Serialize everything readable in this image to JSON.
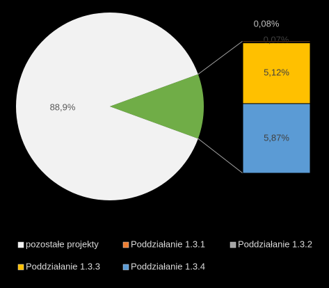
{
  "chart_data": {
    "type": "bar-of-pie",
    "categories": [
      "pozostałe projekty",
      "Poddziałanie 1.3.1",
      "Poddziałanie 1.3.2",
      "Poddziałanie 1.3.3",
      "Poddziałanie 1.3.4"
    ],
    "values": [
      88.9,
      0.08,
      0.07,
      5.12,
      5.87
    ],
    "value_labels": [
      "88,9%",
      "0,08%",
      "0,07%",
      "5,12%",
      "5,87%"
    ],
    "colors": [
      "#f2f2f2",
      "#ed7d31",
      "#a5a5a5",
      "#ffc000",
      "#5b9bd5"
    ],
    "aggregate_color": "#70ad47"
  }
}
